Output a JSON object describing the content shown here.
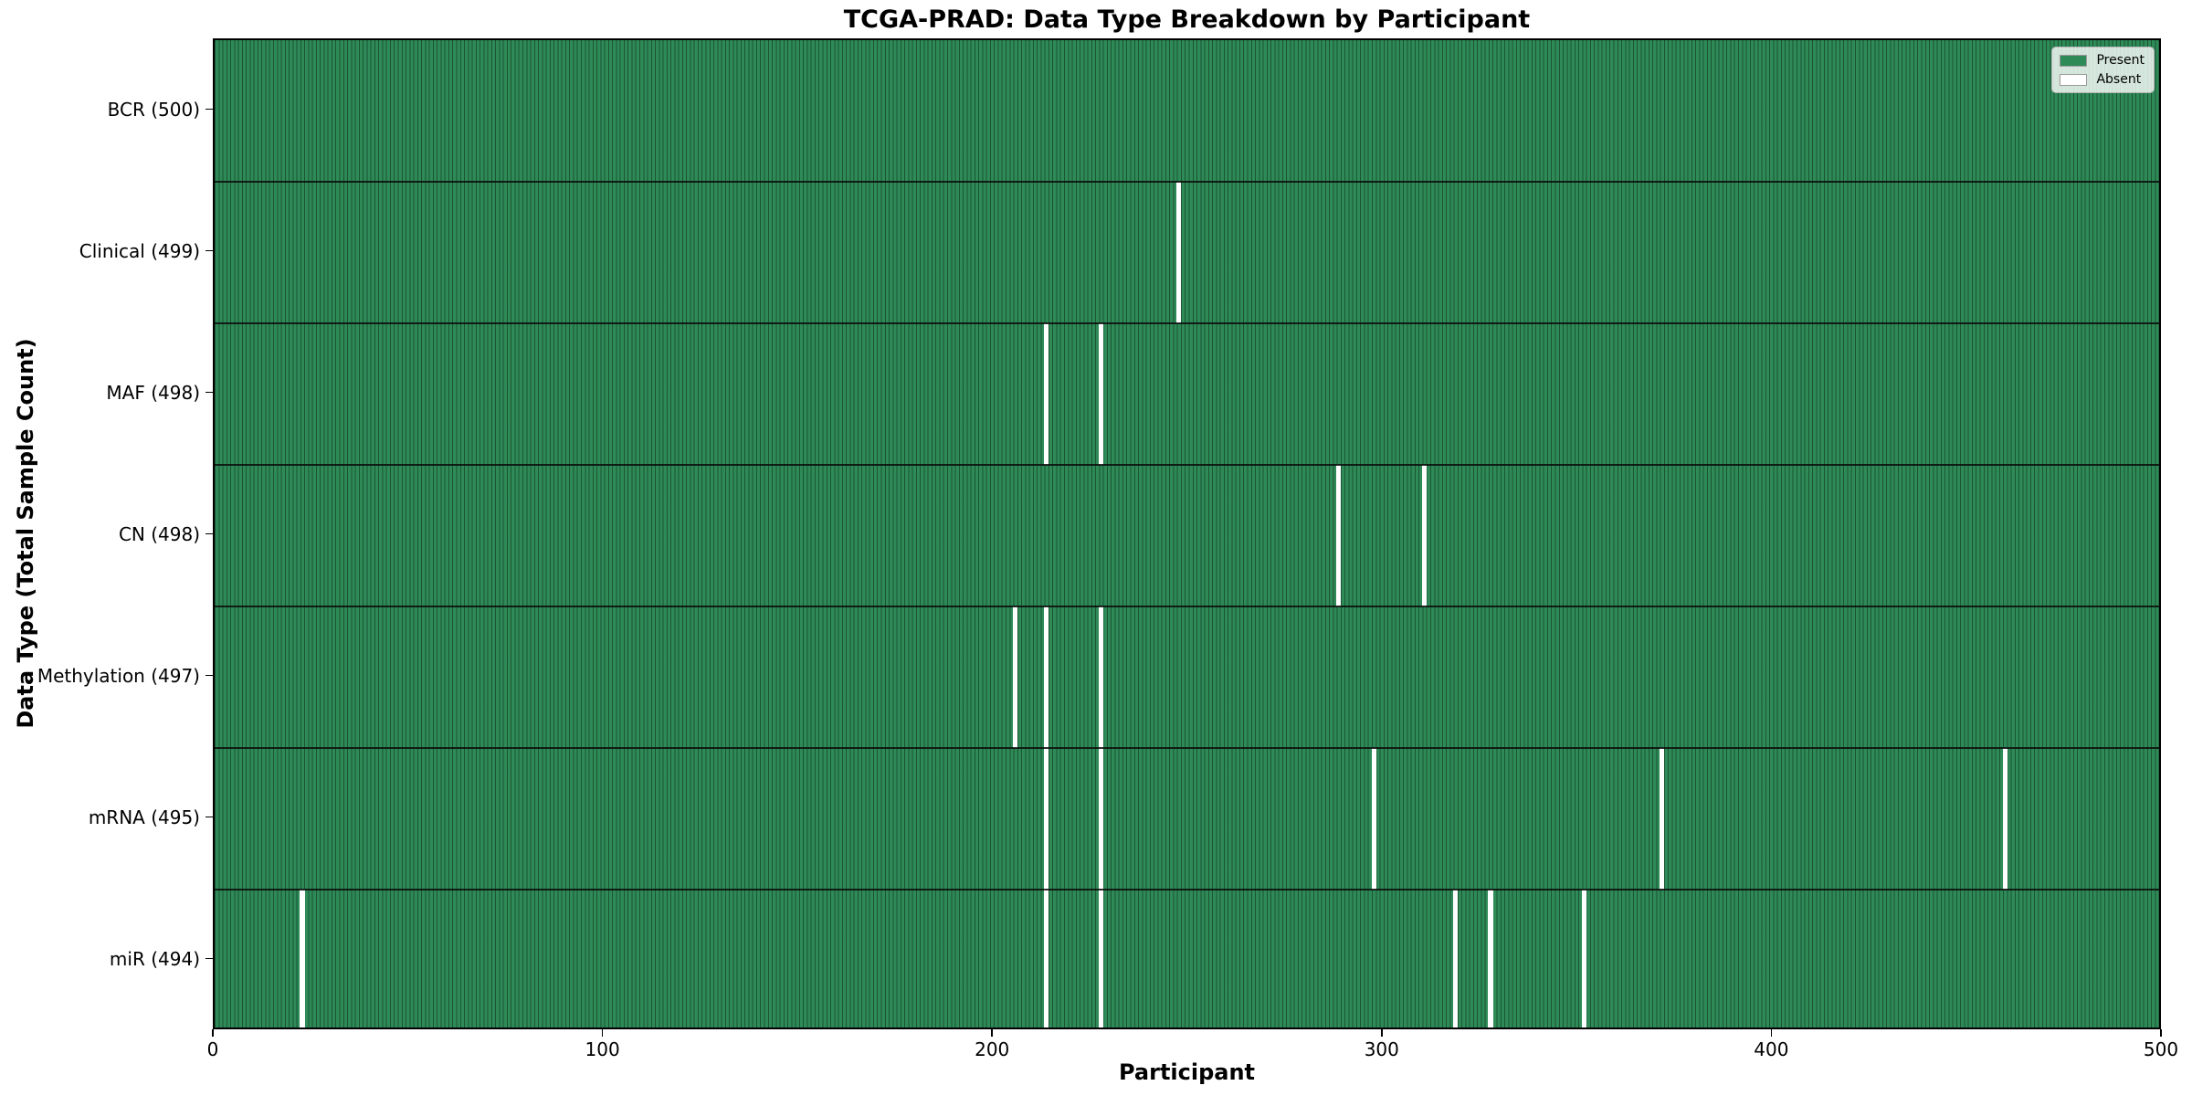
{
  "chart_data": {
    "type": "heatmap",
    "title": "TCGA-PRAD: Data Type Breakdown by Participant",
    "xlabel": "Participant",
    "ylabel": "Data Type (Total Sample Count)",
    "xlim": [
      0,
      500
    ],
    "x_ticks": [
      0,
      100,
      200,
      300,
      400,
      500
    ],
    "n_participants": 500,
    "grid": "row-boundaries",
    "legend_position": "upper right",
    "legend": [
      {
        "label": "Present",
        "color": "#2e8b57"
      },
      {
        "label": "Absent",
        "color": "#ffffff"
      }
    ],
    "colors": {
      "present": "#2e8b57",
      "absent": "#ffffff",
      "cell_edge": "rgba(0,0,0,0.4)",
      "row_boundary": "rgba(10,10,10,0.85)",
      "spine": "#000000"
    },
    "rows": [
      {
        "label": "BCR (500)",
        "total": 500,
        "absent_participants": []
      },
      {
        "label": "Clinical (499)",
        "total": 499,
        "absent_participants": [
          247
        ]
      },
      {
        "label": "MAF (498)",
        "total": 498,
        "absent_participants": [
          213,
          227
        ]
      },
      {
        "label": "CN (498)",
        "total": 498,
        "absent_participants": [
          288,
          310
        ]
      },
      {
        "label": "Methylation (497)",
        "total": 497,
        "absent_participants": [
          205,
          213,
          227
        ]
      },
      {
        "label": "mRNA (495)",
        "total": 495,
        "absent_participants": [
          213,
          227,
          297,
          371,
          459
        ]
      },
      {
        "label": "miR (494)",
        "total": 494,
        "absent_participants": [
          22,
          213,
          227,
          318,
          327,
          351
        ]
      }
    ]
  }
}
